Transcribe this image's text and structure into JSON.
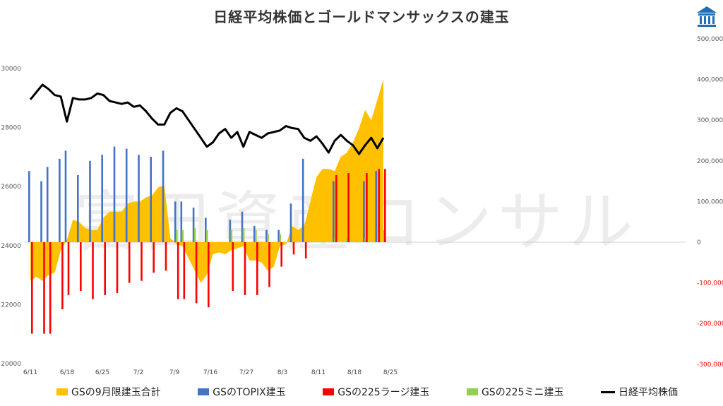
{
  "title": "日経平均株価とゴールドマンサックスの建玉",
  "watermark": "富田資産コンサル",
  "colors": {
    "futures_total": "#FFC000",
    "topix": "#4472C4",
    "large225": "#FF0000",
    "mini225": "#92D050",
    "nikkei": "#000000",
    "negative_tick": "#FF0000"
  },
  "logo_icon": "building-logo-icon",
  "chart_data": {
    "type": "combo",
    "title": "日経平均株価とゴールドマンサックスの建玉",
    "x_ticks": [
      "6/11",
      "6/18",
      "6/25",
      "7/2",
      "7/9",
      "7/16",
      "7/27",
      "8/3",
      "8/11",
      "8/18",
      "8/25"
    ],
    "left_axis": {
      "ylim": [
        20000,
        30000
      ],
      "ticks": [
        "20000",
        "22000",
        "24000",
        "26000",
        "28000",
        "30000"
      ]
    },
    "right_axis": {
      "ylim": [
        -300000,
        500000
      ],
      "ticks": [
        "-300,000",
        "-200,000",
        "-100,000",
        "0",
        "100,000",
        "200,000",
        "300,000",
        "400,000",
        "500,000"
      ]
    },
    "legend_position": "bottom",
    "series": [
      {
        "name": "GSの9月限建玉合計",
        "kind": "area",
        "axis": "right",
        "values": [
          -95000,
          -85000,
          -95000,
          -80000,
          -75000,
          -20000,
          5000,
          55000,
          50000,
          35000,
          30000,
          30000,
          60000,
          75000,
          75000,
          75000,
          95000,
          100000,
          100000,
          110000,
          115000,
          135000,
          140000,
          10000,
          -5000,
          -10000,
          -40000,
          -70000,
          -100000,
          -80000,
          -30000,
          -25000,
          -30000,
          -20000,
          -15000,
          -10000,
          -45000,
          -45000,
          -50000,
          -70000,
          -60000,
          -10000,
          -5000,
          40000,
          30000,
          40000,
          100000,
          160000,
          180000,
          180000,
          175000,
          210000,
          220000,
          245000,
          280000,
          325000,
          300000,
          350000,
          400000
        ]
      },
      {
        "name": "GSのTOPIX建玉",
        "kind": "bar",
        "axis": "right",
        "values": [
          175000,
          0,
          150000,
          185000,
          0,
          205000,
          225000,
          0,
          165000,
          0,
          200000,
          0,
          215000,
          0,
          235000,
          0,
          230000,
          0,
          215000,
          0,
          210000,
          0,
          225000,
          0,
          100000,
          100000,
          0,
          85000,
          0,
          60000,
          0,
          0,
          0,
          55000,
          0,
          75000,
          0,
          40000,
          0,
          30000,
          0,
          30000,
          0,
          95000,
          0,
          205000,
          0,
          0,
          0,
          0,
          150000,
          0,
          0,
          0,
          0,
          150000,
          0,
          175000,
          0
        ]
      },
      {
        "name": "GSの225ラージ建玉",
        "kind": "bar",
        "axis": "right",
        "values": [
          -225000,
          0,
          -225000,
          -225000,
          0,
          -165000,
          -130000,
          0,
          -120000,
          0,
          -140000,
          0,
          -130000,
          0,
          -125000,
          0,
          -100000,
          0,
          -95000,
          0,
          -75000,
          0,
          -70000,
          0,
          -140000,
          -140000,
          0,
          -150000,
          0,
          -160000,
          0,
          0,
          0,
          -120000,
          0,
          -130000,
          0,
          -130000,
          0,
          -110000,
          0,
          -60000,
          0,
          -30000,
          0,
          -40000,
          0,
          0,
          0,
          0,
          165000,
          0,
          170000,
          0,
          0,
          170000,
          0,
          180000,
          180000
        ]
      },
      {
        "name": "GSの225ミニ建玉",
        "kind": "bar",
        "axis": "right",
        "values": [
          0,
          0,
          0,
          0,
          0,
          0,
          0,
          0,
          0,
          0,
          0,
          0,
          0,
          0,
          0,
          0,
          0,
          0,
          0,
          0,
          0,
          0,
          0,
          0,
          30000,
          30000,
          0,
          35000,
          0,
          30000,
          0,
          0,
          0,
          30000,
          0,
          35000,
          0,
          30000,
          0,
          20000,
          0,
          20000,
          0,
          0,
          0,
          0,
          0,
          0,
          0,
          0,
          10000,
          0,
          10000,
          0,
          0,
          10000,
          0,
          0,
          30000
        ]
      },
      {
        "name": "日経平均株価",
        "kind": "line",
        "axis": "left",
        "values": [
          28950,
          29200,
          29450,
          29300,
          29100,
          29050,
          28200,
          29000,
          28950,
          28950,
          29000,
          29150,
          29100,
          28900,
          28850,
          28800,
          28850,
          28700,
          28750,
          28550,
          28300,
          28100,
          28100,
          28500,
          28650,
          28550,
          28250,
          27950,
          27650,
          27350,
          27500,
          27800,
          27950,
          27650,
          27850,
          27350,
          27850,
          27750,
          27650,
          27800,
          27850,
          27900,
          28050,
          27980,
          27950,
          27650,
          27550,
          27700,
          27450,
          27150,
          27550,
          27750,
          27550,
          27400,
          27100,
          27400,
          27650,
          27300,
          27650
        ]
      }
    ]
  }
}
